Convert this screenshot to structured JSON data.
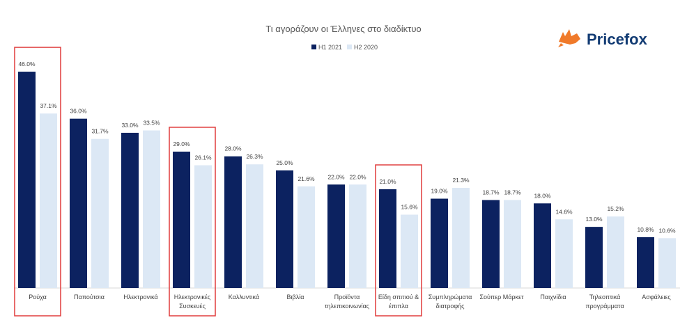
{
  "chart_data": {
    "type": "bar",
    "title": "Τι αγοράζουν οι Έλληνες στο διαδίκτυο",
    "ylim": [
      0,
      50
    ],
    "grid": false,
    "legend_position": "top-center",
    "categories": [
      [
        "Ρούχα"
      ],
      [
        "Παπούτσια"
      ],
      [
        "Ηλεκτρονικά"
      ],
      [
        "Ηλεκτρονικές",
        "Συσκευές"
      ],
      [
        "Καλλυντικά"
      ],
      [
        "Βιβλία"
      ],
      [
        "Προϊόντα",
        "τηλεπικοινωνίας"
      ],
      [
        "Είδη σπιτιού &",
        "έπιπλα"
      ],
      [
        "Συμπληρώματα",
        "διατροφής"
      ],
      [
        "Σούπερ Μάρκετ"
      ],
      [
        "Παιχνίδια"
      ],
      [
        "Τηλεοπτικά",
        "προγράμματα"
      ],
      [
        "Ασφάλειες"
      ]
    ],
    "series": [
      {
        "name": "H1 2021",
        "color": "#0c2260",
        "values": [
          46.0,
          36.0,
          33.0,
          29.0,
          28.0,
          25.0,
          22.0,
          21.0,
          19.0,
          18.7,
          18.0,
          13.0,
          10.8
        ],
        "labels": [
          "46.0%",
          "36.0%",
          "33.0%",
          "29.0%",
          "28.0%",
          "25.0%",
          "22.0%",
          "21.0%",
          "19.0%",
          "18.7%",
          "18.0%",
          "13.0%",
          "10.8%"
        ]
      },
      {
        "name": "H2 2020",
        "color": "#dce8f5",
        "values": [
          37.1,
          31.7,
          33.5,
          26.1,
          26.3,
          21.6,
          22.0,
          15.6,
          21.3,
          18.7,
          14.6,
          15.2,
          10.6
        ],
        "labels": [
          "37.1%",
          "31.7%",
          "33.5%",
          "26.1%",
          "26.3%",
          "21.6%",
          "22.0%",
          "15.6%",
          "21.3%",
          "18.7%",
          "14.6%",
          "15.2%",
          "10.6%"
        ]
      }
    ],
    "highlighted_categories": [
      0,
      3,
      7
    ],
    "highlight_color": "#e03c3c"
  },
  "brand": {
    "name": "Pricefox",
    "logo_icon": "fox-icon",
    "logo_color": "#f07a2a",
    "text_color": "#123b73"
  }
}
